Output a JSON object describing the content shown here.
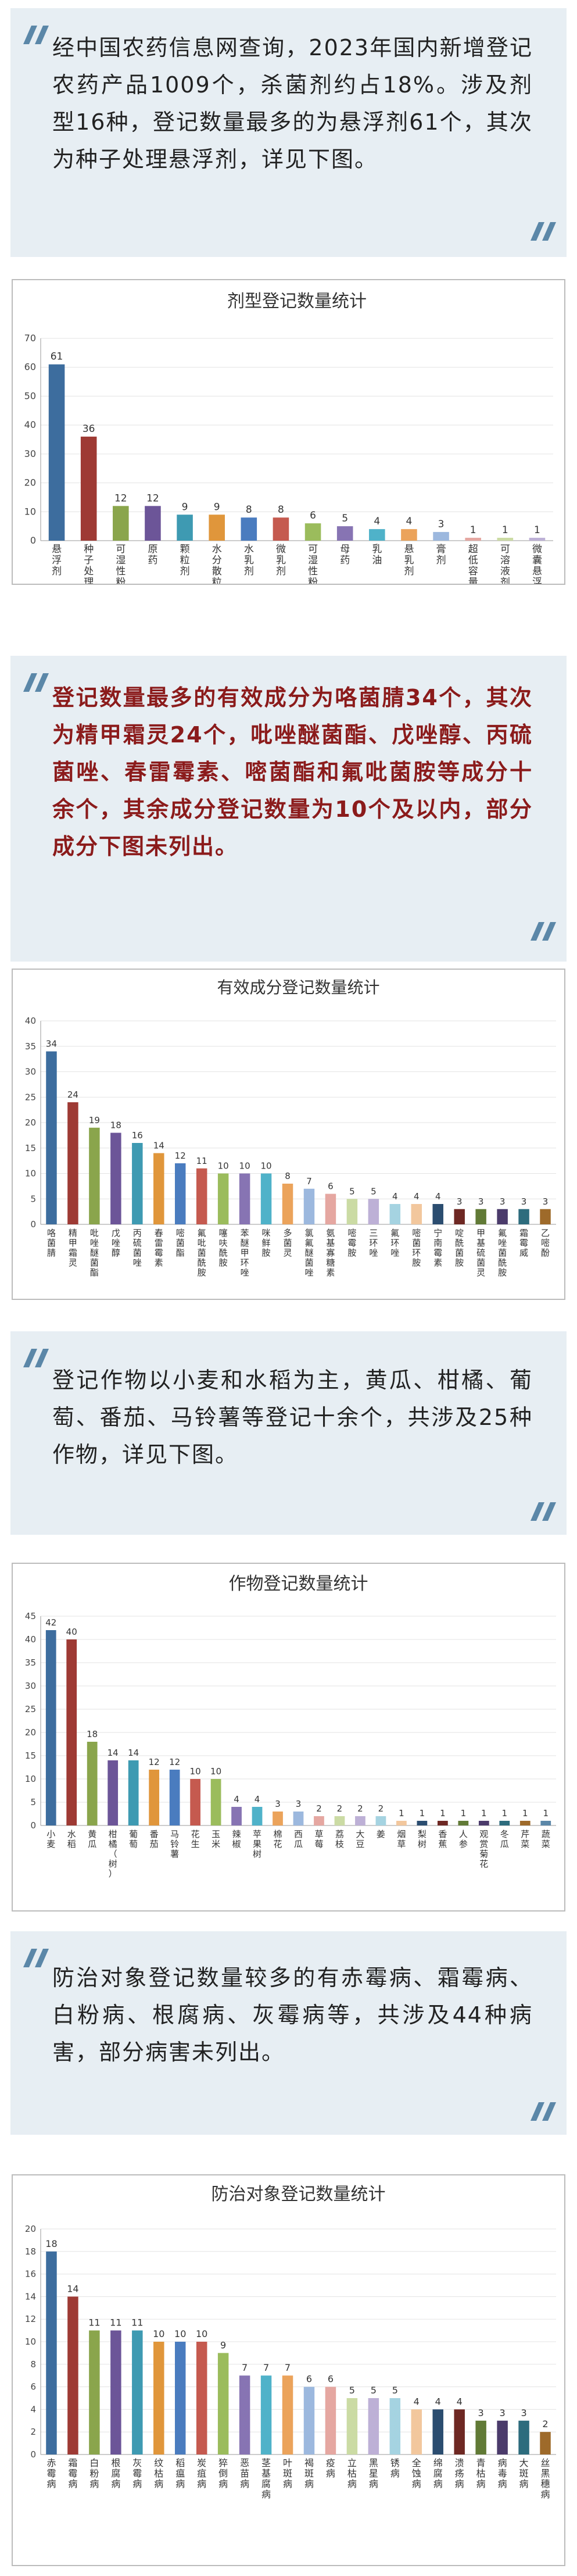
{
  "texts": {
    "p1": "经中国农药信息网查询，2023年国内新增登记农药产品1009个，杀菌剂约占18%。涉及剂型16种，登记数量最多的为悬浮剂61个，其次为种子处理悬浮剂，详见下图。",
    "p2": "登记数量最多的有效成分为咯菌腈34个，其次为精甲霜灵24个，吡唑醚菌酯、戊唑醇、丙硫菌唑、春雷霉素、嘧菌酯和氟吡菌胺等成分十余个，其余成分登记数量为10个及以内，部分成分下图未列出。",
    "p3": "登记作物以小麦和水稻为主，黄瓜、柑橘、葡萄、番茄、马铃薯等登记十余个，共涉及25种作物，详见下图。",
    "p4": "防治对象登记数量较多的有赤霉病、霜霉病、白粉病、根腐病、灰霉病等，共涉及44种病害，部分病害未列出。"
  },
  "colors": {
    "quote_bg": "#e7eef3",
    "quote_mark": "#5b87a8",
    "highlight_text": "#8b1b1b",
    "body_text": "#222222"
  },
  "chart_data": [
    {
      "type": "bar",
      "title": "剂型登记数量统计",
      "ylim": [
        0,
        70
      ],
      "ytick_step": 10,
      "categories": [
        "悬浮剂",
        "种子处理悬浮剂",
        "可湿性粉剂",
        "原药",
        "颗粒剂",
        "水分散粒剂",
        "水乳剂",
        "微乳剂",
        "可湿性粉剂",
        "母药",
        "乳油",
        "悬乳剂",
        "膏剂",
        "超低容量液剂",
        "可溶液剂",
        "微囊悬浮剂"
      ],
      "values": [
        61,
        36,
        12,
        12,
        9,
        9,
        8,
        8,
        6,
        5,
        4,
        4,
        3,
        1,
        1,
        1
      ],
      "colors": [
        "#3d6d9e",
        "#9e3a34",
        "#8aa54c",
        "#6c5598",
        "#3e9ab2",
        "#e0963b",
        "#4a7cbf",
        "#c55a4f",
        "#9bbc5c",
        "#8774b3",
        "#4fb2c9",
        "#eba35b",
        "#9cb8de",
        "#e5a7a1",
        "#cbdba4",
        "#bdb0d6"
      ],
      "grid": true,
      "legend": "none"
    },
    {
      "type": "bar",
      "title": "有效成分登记数量统计",
      "ylim": [
        0,
        40
      ],
      "ytick_step": 5,
      "categories": [
        "咯菌腈",
        "精甲霜灵",
        "吡唑醚菌酯",
        "戊唑醇",
        "丙硫菌唑",
        "春雷霉素",
        "嘧菌酯",
        "氟吡菌酰胺",
        "噻呋酰胺",
        "苯醚甲环唑",
        "咪鲜胺",
        "多菌灵",
        "氯氟醚菌唑",
        "氨基寡糖素",
        "嘧霉胺",
        "三环唑",
        "氟环唑",
        "嘧菌环胺",
        "宁南霉素",
        "啶酰菌胺",
        "甲基硫菌灵",
        "氟唑菌酰胺",
        "霜霉威",
        "乙嘧酚"
      ],
      "values": [
        34,
        24,
        19,
        18,
        16,
        14,
        12,
        11,
        10,
        10,
        10,
        8,
        7,
        6,
        5,
        5,
        4,
        4,
        4,
        3,
        3,
        3,
        3,
        3
      ],
      "colors": [
        "#3d6d9e",
        "#9e3a34",
        "#8aa54c",
        "#6c5598",
        "#3e9ab2",
        "#e0963b",
        "#4a7cbf",
        "#c55a4f",
        "#9bbc5c",
        "#8774b3",
        "#4fb2c9",
        "#eba35b",
        "#9cb8de",
        "#e5a7a1",
        "#cbdba4",
        "#bdb0d6",
        "#a5d3e1",
        "#f2c79d",
        "#2b4d70",
        "#6e2823",
        "#617a36",
        "#4b3b6b",
        "#2d6c7d",
        "#9e6a2a"
      ],
      "grid": true,
      "legend": "none"
    },
    {
      "type": "bar",
      "title": "作物登记数量统计",
      "ylim": [
        0,
        45
      ],
      "ytick_step": 5,
      "categories": [
        "小麦",
        "水稻",
        "黄瓜",
        "柑橘（树）",
        "葡萄",
        "番茄",
        "马铃薯",
        "花生",
        "玉米",
        "辣椒",
        "苹果树",
        "棉花",
        "西瓜",
        "草莓",
        "荔枝",
        "大豆",
        "姜",
        "烟草",
        "梨树",
        "香蕉",
        "人参",
        "观赏菊花",
        "冬瓜",
        "芹菜",
        "蔬菜"
      ],
      "values": [
        42,
        40,
        18,
        14,
        14,
        12,
        12,
        10,
        10,
        4,
        4,
        3,
        3,
        2,
        2,
        2,
        2,
        1,
        1,
        1,
        1,
        1,
        1,
        1,
        1
      ],
      "colors": [
        "#3d6d9e",
        "#9e3a34",
        "#8aa54c",
        "#6c5598",
        "#3e9ab2",
        "#e0963b",
        "#4a7cbf",
        "#c55a4f",
        "#9bbc5c",
        "#8774b3",
        "#4fb2c9",
        "#eba35b",
        "#9cb8de",
        "#e5a7a1",
        "#cbdba4",
        "#bdb0d6",
        "#a5d3e1",
        "#f2c79d",
        "#2b4d70",
        "#6e2823",
        "#617a36",
        "#4b3b6b",
        "#2d6c7d",
        "#9e6a2a",
        "#5b87a8"
      ],
      "grid": true,
      "legend": "none"
    },
    {
      "type": "bar",
      "title": "防治对象登记数量统计",
      "ylim": [
        0,
        20
      ],
      "ytick_step": 2,
      "categories": [
        "赤霉病",
        "霜霉病",
        "白粉病",
        "根腐病",
        "灰霉病",
        "纹枯病",
        "稻瘟病",
        "炭疽病",
        "猝倒病",
        "恶苗病",
        "茎基腐病",
        "叶斑病",
        "褐斑病",
        "疫病",
        "立枯病",
        "黑星病",
        "锈病",
        "全蚀病",
        "绵腐病",
        "溃疡病",
        "青枯病",
        "病毒病",
        "大斑病",
        "丝黑穗病"
      ],
      "values": [
        18,
        14,
        11,
        11,
        11,
        10,
        10,
        10,
        9,
        7,
        7,
        7,
        6,
        6,
        5,
        5,
        5,
        4,
        4,
        4,
        3,
        3,
        3,
        2
      ],
      "colors": [
        "#3d6d9e",
        "#9e3a34",
        "#8aa54c",
        "#6c5598",
        "#3e9ab2",
        "#e0963b",
        "#4a7cbf",
        "#c55a4f",
        "#9bbc5c",
        "#8774b3",
        "#4fb2c9",
        "#eba35b",
        "#9cb8de",
        "#e5a7a1",
        "#cbdba4",
        "#bdb0d6",
        "#a5d3e1",
        "#f2c79d",
        "#2b4d70",
        "#6e2823",
        "#617a36",
        "#4b3b6b",
        "#2d6c7d",
        "#9e6a2a"
      ],
      "grid": true,
      "legend": "none"
    }
  ]
}
